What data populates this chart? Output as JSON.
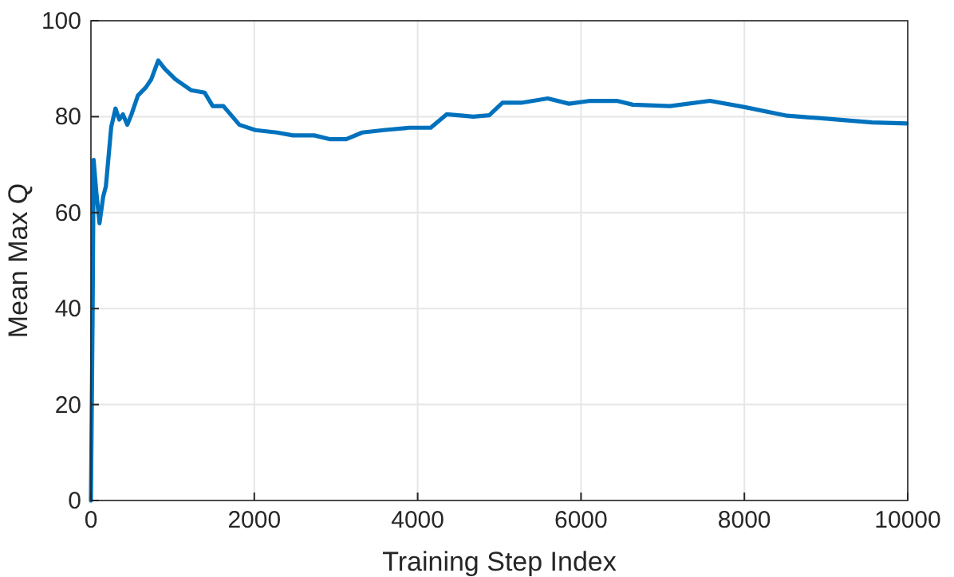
{
  "chart_data": {
    "type": "line",
    "xlabel": "Training Step Index",
    "ylabel": "Mean Max Q",
    "xlim": [
      0,
      10000
    ],
    "ylim": [
      0,
      100
    ],
    "xticks": [
      0,
      2000,
      4000,
      6000,
      8000,
      10000
    ],
    "yticks": [
      0,
      20,
      40,
      60,
      80,
      100
    ],
    "grid": true,
    "line_style": "solid",
    "marker": "none",
    "series": [
      {
        "color": "#0072bd",
        "x": [
          0,
          20,
          33,
          65,
          105,
          150,
          183,
          248,
          301,
          347,
          392,
          445,
          497,
          575,
          673,
          739,
          824,
          902,
          1033,
          1229,
          1393,
          1491,
          1622,
          1818,
          2014,
          2276,
          2472,
          2734,
          2930,
          3126,
          3322,
          3584,
          3900,
          4160,
          4355,
          4551,
          4681,
          4876,
          5039,
          5267,
          5592,
          5853,
          6113,
          6439,
          6634,
          7090,
          7578,
          8002,
          8522,
          8912,
          9564,
          9987
        ],
        "values": [
          0,
          37.8,
          71,
          64.4,
          57.8,
          63.3,
          65.5,
          77.8,
          81.7,
          79.4,
          80.5,
          78.3,
          80.5,
          84.4,
          86.1,
          87.8,
          91.7,
          90,
          87.8,
          85.5,
          85,
          82.2,
          82.2,
          78.3,
          77.2,
          76.7,
          76.1,
          76.1,
          75.3,
          75.3,
          76.7,
          77.2,
          77.7,
          77.7,
          80.5,
          80.2,
          80,
          80.3,
          82.9,
          82.9,
          83.8,
          82.7,
          83.3,
          83.3,
          82.5,
          82.2,
          83.3,
          82,
          80.2,
          79.7,
          78.8,
          78.6
        ]
      }
    ]
  }
}
